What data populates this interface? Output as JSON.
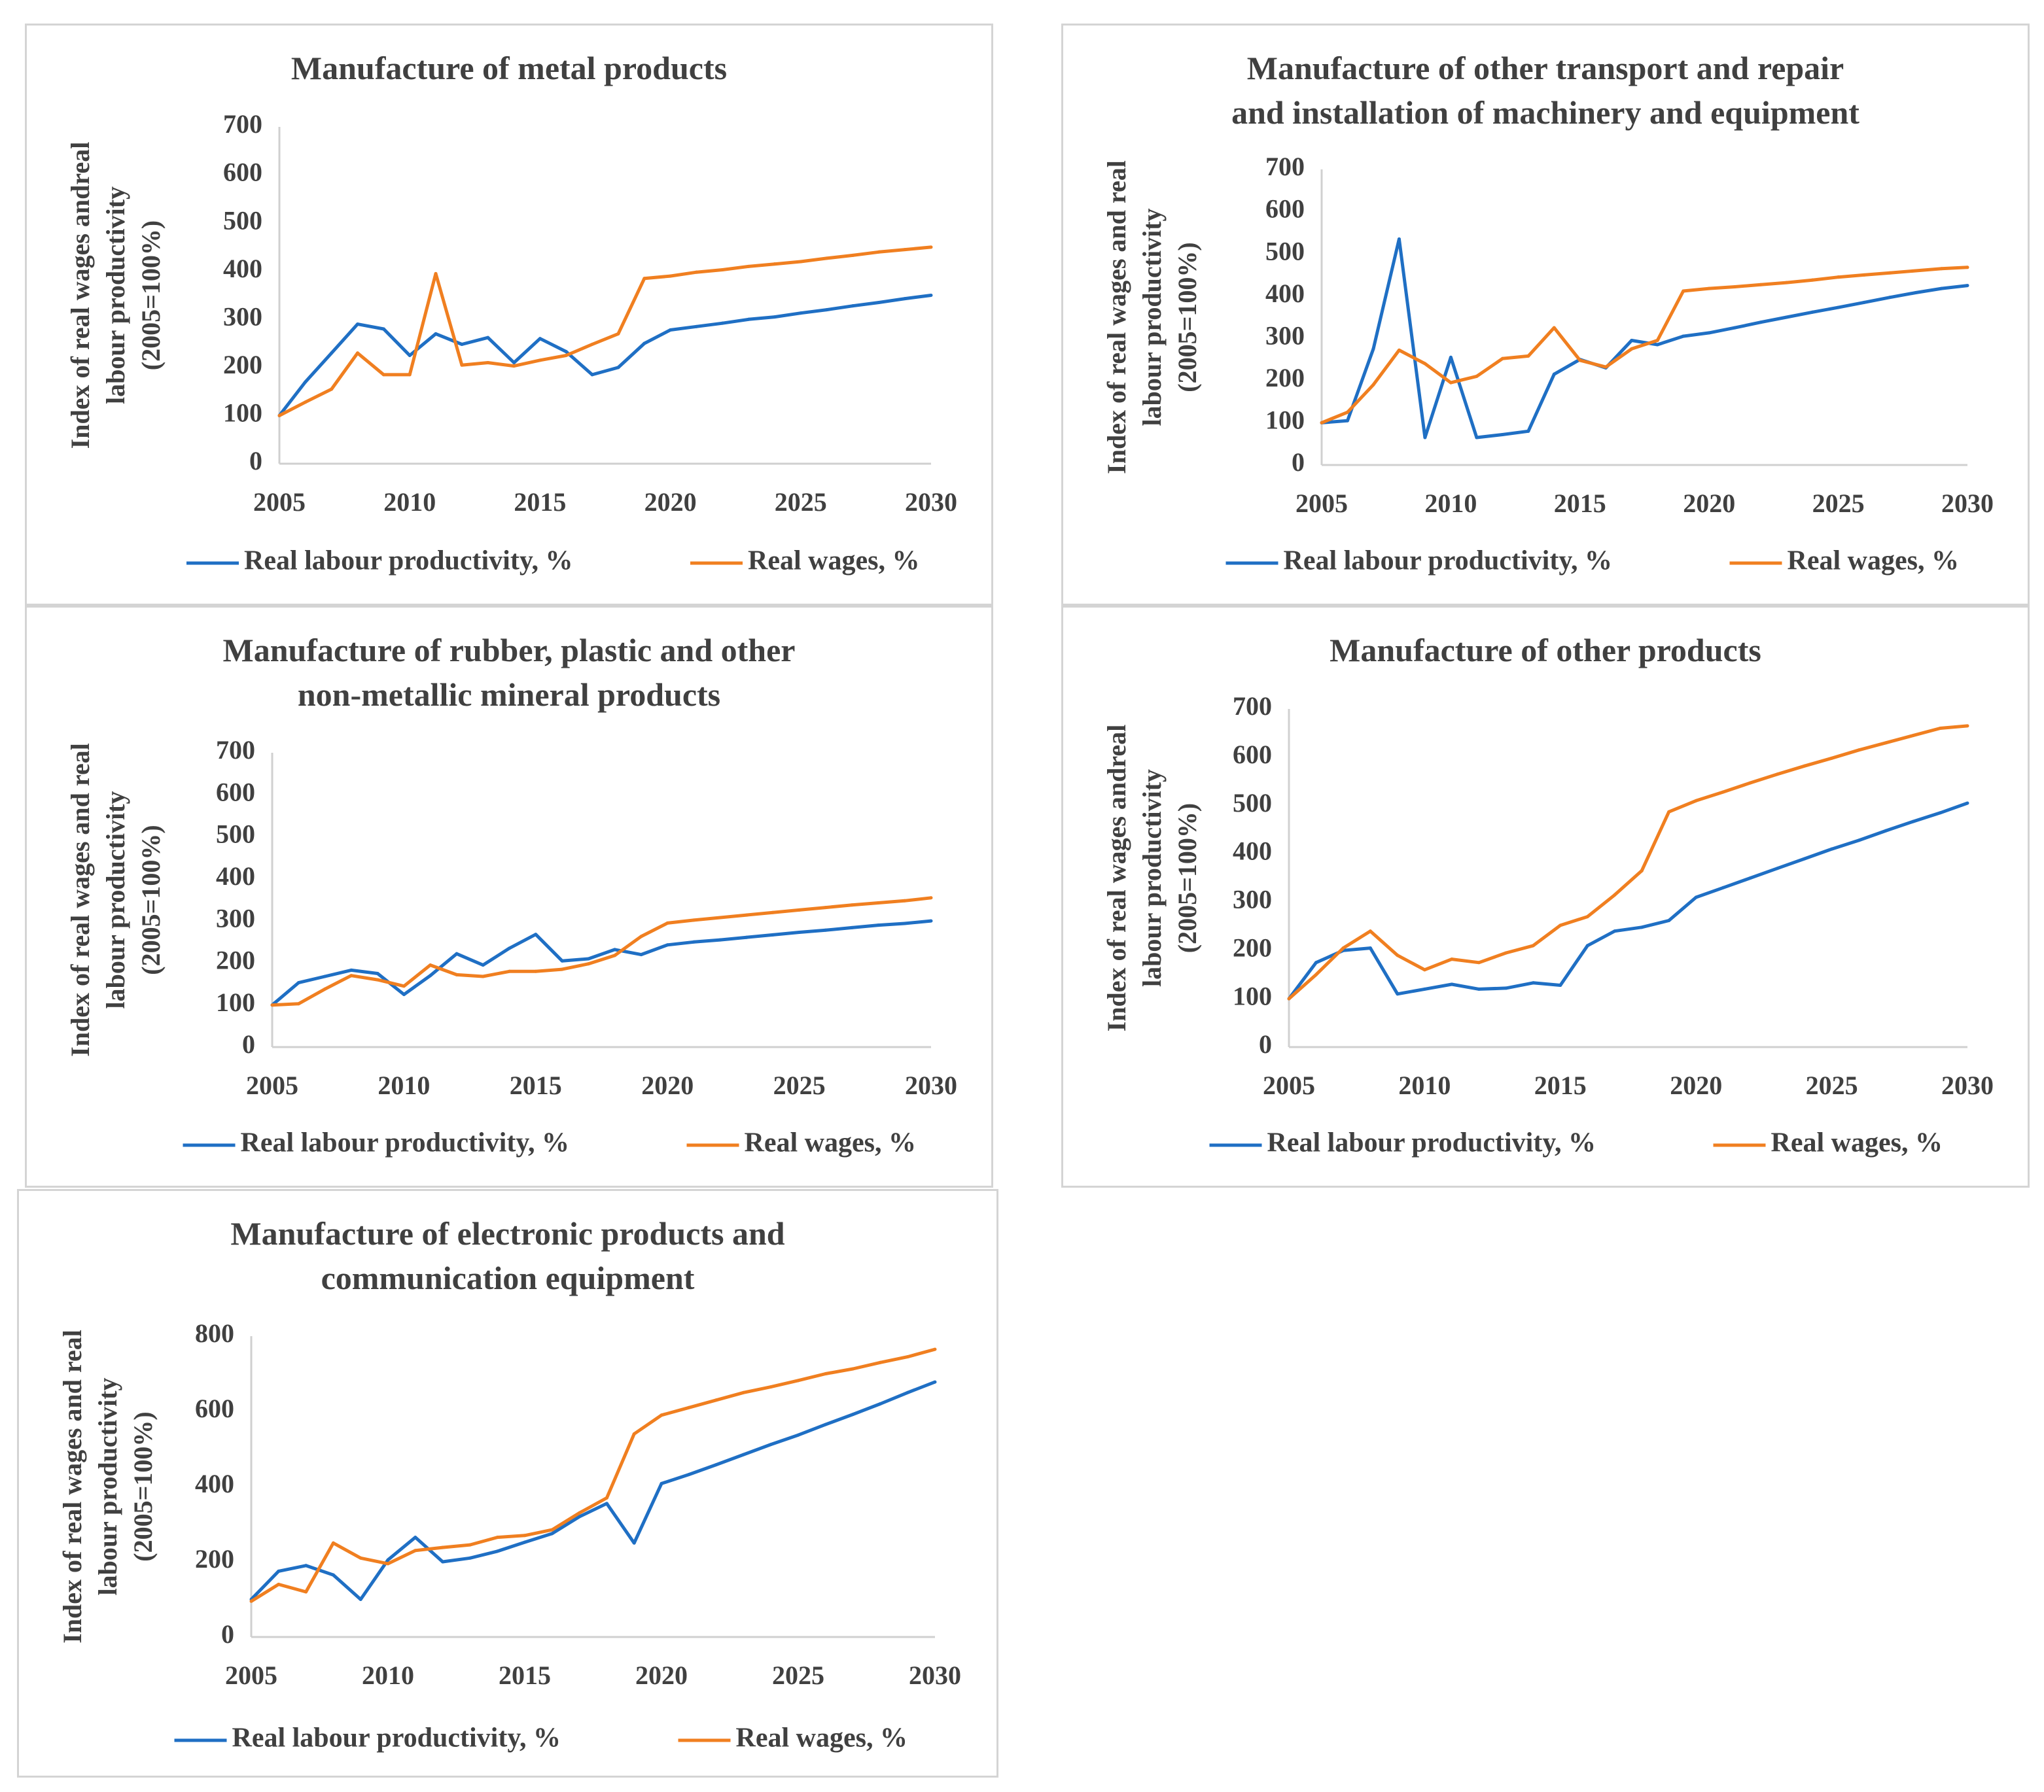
{
  "colors": {
    "productivity": "#1f6fc4",
    "wages": "#f07f20",
    "axis": "#d0d0d0",
    "text": "#404040",
    "panel_border": "#d4d4d4"
  },
  "chart_data": [
    {
      "type": "line",
      "title": [
        "Manufacture of metal products"
      ],
      "ylabel": [
        "Index of real wages andreal",
        "labour productivity",
        "(2005=100%)"
      ],
      "xlabel": "",
      "xlim": [
        2005,
        2030
      ],
      "ylim": [
        0,
        700
      ],
      "yticks": [
        "0",
        "100",
        "200",
        "300",
        "400",
        "500",
        "600",
        "700"
      ],
      "xticks": [
        "2005",
        "2010",
        "2015",
        "2020",
        "2025",
        "2030"
      ],
      "legend_position": "bottom",
      "series": [
        {
          "name": "Real labour productivity, %",
          "color": "#1f6fc4",
          "x": [
            2005,
            2006,
            2007,
            2008,
            2009,
            2010,
            2011,
            2012,
            2013,
            2014,
            2015,
            2016,
            2017,
            2018,
            2019,
            2020,
            2021,
            2022,
            2023,
            2024,
            2025,
            2026,
            2027,
            2028,
            2029,
            2030
          ],
          "values": [
            100,
            170,
            230,
            290,
            280,
            225,
            270,
            248,
            262,
            210,
            260,
            233,
            185,
            200,
            250,
            278,
            285,
            292,
            300,
            305,
            313,
            320,
            328,
            335,
            343,
            350
          ]
        },
        {
          "name": "Real wages, %",
          "color": "#f07f20",
          "x": [
            2005,
            2006,
            2007,
            2008,
            2009,
            2010,
            2011,
            2012,
            2013,
            2014,
            2015,
            2016,
            2017,
            2018,
            2019,
            2020,
            2021,
            2022,
            2023,
            2024,
            2025,
            2026,
            2027,
            2028,
            2029,
            2030
          ],
          "values": [
            100,
            128,
            155,
            230,
            185,
            185,
            395,
            205,
            210,
            203,
            215,
            225,
            248,
            270,
            385,
            390,
            398,
            403,
            410,
            415,
            420,
            427,
            433,
            440,
            445,
            450
          ]
        }
      ]
    },
    {
      "type": "line",
      "title": [
        "Manufacture of other transport  and repair",
        "and installation of machinery and equipment"
      ],
      "ylabel": [
        "Index of real wages and real",
        "labour productivity",
        "(2005=100%)"
      ],
      "xlabel": "",
      "xlim": [
        2005,
        2030
      ],
      "ylim": [
        0,
        700
      ],
      "yticks": [
        "0",
        "100",
        "200",
        "300",
        "400",
        "500",
        "600",
        "700"
      ],
      "xticks": [
        "2005",
        "2010",
        "2015",
        "2020",
        "2025",
        "2030"
      ],
      "legend_position": "bottom",
      "series": [
        {
          "name": "Real labour productivity, %",
          "color": "#1f6fc4",
          "x": [
            2005,
            2006,
            2007,
            2008,
            2009,
            2010,
            2011,
            2012,
            2013,
            2014,
            2015,
            2016,
            2017,
            2018,
            2019,
            2020,
            2021,
            2022,
            2023,
            2024,
            2025,
            2026,
            2027,
            2028,
            2029,
            2030
          ],
          "values": [
            100,
            105,
            275,
            535,
            65,
            255,
            65,
            72,
            80,
            215,
            250,
            230,
            295,
            285,
            305,
            313,
            325,
            338,
            350,
            362,
            373,
            385,
            397,
            408,
            418,
            425
          ]
        },
        {
          "name": "Real wages, %",
          "color": "#f07f20",
          "x": [
            2005,
            2006,
            2007,
            2008,
            2009,
            2010,
            2011,
            2012,
            2013,
            2014,
            2015,
            2016,
            2017,
            2018,
            2019,
            2020,
            2021,
            2022,
            2023,
            2024,
            2025,
            2026,
            2027,
            2028,
            2029,
            2030
          ],
          "values": [
            100,
            125,
            190,
            272,
            240,
            195,
            210,
            252,
            258,
            325,
            248,
            232,
            275,
            295,
            412,
            418,
            422,
            427,
            432,
            438,
            445,
            450,
            455,
            460,
            465,
            468
          ]
        }
      ]
    },
    {
      "type": "line",
      "title": [
        "Manufacture of rubber, plastic and other",
        "non-metallic mineral products"
      ],
      "ylabel": [
        "Index of real wages and real",
        "labour productivity",
        "(2005=100%)"
      ],
      "xlabel": "",
      "xlim": [
        2005,
        2030
      ],
      "ylim": [
        0,
        700
      ],
      "yticks": [
        "0",
        "100",
        "200",
        "300",
        "400",
        "500",
        "600",
        "700"
      ],
      "xticks": [
        "2005",
        "2010",
        "2015",
        "2020",
        "2025",
        "2030"
      ],
      "legend_position": "bottom",
      "series": [
        {
          "name": "Real labour productivity, %",
          "color": "#1f6fc4",
          "x": [
            2005,
            2006,
            2007,
            2008,
            2009,
            2010,
            2011,
            2012,
            2013,
            2014,
            2015,
            2016,
            2017,
            2018,
            2019,
            2020,
            2021,
            2022,
            2023,
            2024,
            2025,
            2026,
            2027,
            2028,
            2029,
            2030
          ],
          "values": [
            100,
            153,
            168,
            183,
            175,
            125,
            170,
            222,
            195,
            235,
            268,
            205,
            210,
            232,
            220,
            243,
            250,
            255,
            261,
            267,
            273,
            278,
            284,
            290,
            294,
            300
          ]
        },
        {
          "name": "Real wages, %",
          "color": "#f07f20",
          "x": [
            2005,
            2006,
            2007,
            2008,
            2009,
            2010,
            2011,
            2012,
            2013,
            2014,
            2015,
            2016,
            2017,
            2018,
            2019,
            2020,
            2021,
            2022,
            2023,
            2024,
            2025,
            2026,
            2027,
            2028,
            2029,
            2030
          ],
          "values": [
            100,
            103,
            138,
            170,
            160,
            145,
            195,
            172,
            168,
            180,
            180,
            185,
            198,
            218,
            263,
            295,
            302,
            308,
            314,
            320,
            326,
            332,
            338,
            343,
            348,
            355
          ]
        }
      ]
    },
    {
      "type": "line",
      "title": [
        "Manufacture of other products"
      ],
      "ylabel": [
        "Index of real wages andreal",
        "labour productivity",
        "(2005=100%)"
      ],
      "xlabel": "",
      "xlim": [
        2005,
        2030
      ],
      "ylim": [
        0,
        700
      ],
      "yticks": [
        "0",
        "100",
        "200",
        "300",
        "400",
        "500",
        "600",
        "700"
      ],
      "xticks": [
        "2005",
        "2010",
        "2015",
        "2020",
        "2025",
        "2030"
      ],
      "legend_position": "bottom",
      "series": [
        {
          "name": "Real labour productivity, %",
          "color": "#1f6fc4",
          "x": [
            2005,
            2006,
            2007,
            2008,
            2009,
            2010,
            2011,
            2012,
            2013,
            2014,
            2015,
            2016,
            2017,
            2018,
            2019,
            2020,
            2021,
            2022,
            2023,
            2024,
            2025,
            2026,
            2027,
            2028,
            2029,
            2030
          ],
          "values": [
            100,
            175,
            200,
            205,
            110,
            120,
            130,
            120,
            122,
            133,
            128,
            210,
            240,
            248,
            262,
            310,
            330,
            350,
            370,
            390,
            410,
            428,
            448,
            467,
            485,
            505
          ]
        },
        {
          "name": "Real wages, %",
          "color": "#f07f20",
          "x": [
            2005,
            2006,
            2007,
            2008,
            2009,
            2010,
            2011,
            2012,
            2013,
            2014,
            2015,
            2016,
            2017,
            2018,
            2019,
            2020,
            2021,
            2022,
            2023,
            2024,
            2025,
            2026,
            2027,
            2028,
            2029,
            2030
          ],
          "values": [
            100,
            150,
            205,
            240,
            190,
            160,
            182,
            175,
            195,
            210,
            252,
            270,
            315,
            365,
            487,
            510,
            528,
            547,
            565,
            582,
            598,
            615,
            630,
            645,
            660,
            665
          ]
        }
      ]
    },
    {
      "type": "line",
      "title": [
        "Manufacture of electronic products and",
        "communication equipment"
      ],
      "ylabel": [
        "Index of real wages and real",
        "labour productivity",
        "(2005=100%)"
      ],
      "xlabel": "",
      "xlim": [
        2005,
        2030
      ],
      "ylim": [
        0,
        800
      ],
      "yticks": [
        "0",
        "200",
        "400",
        "600",
        "800"
      ],
      "xticks": [
        "2005",
        "2010",
        "2015",
        "2020",
        "2025",
        "2030"
      ],
      "legend_position": "bottom",
      "series": [
        {
          "name": "Real labour productivity, %",
          "color": "#1f6fc4",
          "x": [
            2005,
            2006,
            2007,
            2008,
            2009,
            2010,
            2011,
            2012,
            2013,
            2014,
            2015,
            2016,
            2017,
            2018,
            2019,
            2020,
            2021,
            2022,
            2023,
            2024,
            2025,
            2026,
            2027,
            2028,
            2029,
            2030
          ],
          "values": [
            100,
            175,
            190,
            165,
            100,
            205,
            265,
            200,
            210,
            228,
            252,
            275,
            320,
            355,
            250,
            408,
            432,
            458,
            485,
            512,
            537,
            565,
            592,
            620,
            650,
            678
          ]
        },
        {
          "name": "Real wages, %",
          "color": "#f07f20",
          "x": [
            2005,
            2006,
            2007,
            2008,
            2009,
            2010,
            2011,
            2012,
            2013,
            2014,
            2015,
            2016,
            2017,
            2018,
            2019,
            2020,
            2021,
            2022,
            2023,
            2024,
            2025,
            2026,
            2027,
            2028,
            2029,
            2030
          ],
          "values": [
            95,
            140,
            120,
            250,
            210,
            195,
            230,
            238,
            245,
            265,
            270,
            285,
            330,
            370,
            540,
            590,
            610,
            630,
            650,
            665,
            682,
            700,
            713,
            730,
            745,
            765
          ]
        }
      ]
    }
  ]
}
